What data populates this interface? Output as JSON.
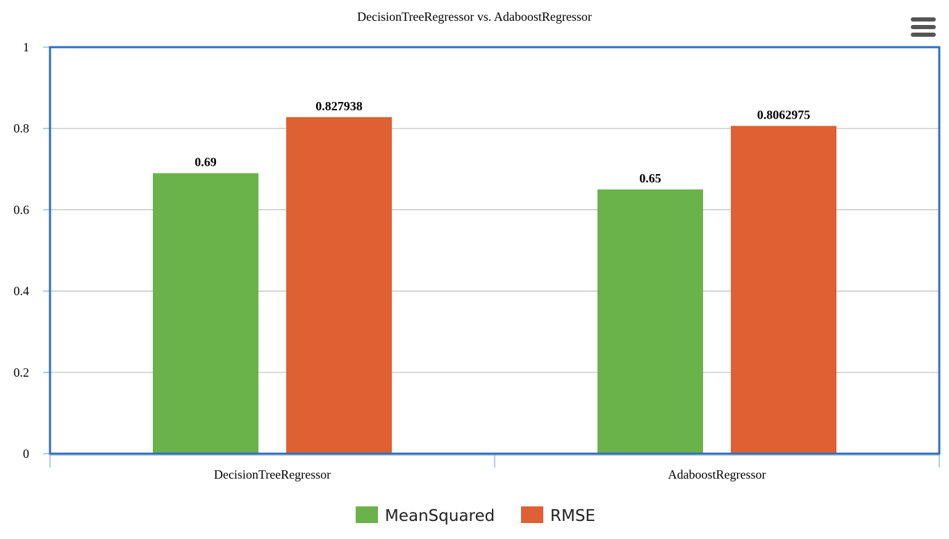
{
  "chart_data": {
    "type": "bar",
    "title": "DecisionTreeRegressor vs. AdaboostRegressor",
    "xlabel": "",
    "ylabel": "",
    "categories": [
      "DecisionTreeRegressor",
      "AdaboostRegressor"
    ],
    "series": [
      {
        "name": "MeanSquared",
        "values": [
          0.69,
          0.65
        ],
        "labels": [
          "0.69",
          "0.65"
        ],
        "color": "#6ab24a"
      },
      {
        "name": "RMSE",
        "values": [
          0.827938,
          0.8062975
        ],
        "labels": [
          "0.827938",
          "0.8062975"
        ],
        "color": "#de6033"
      }
    ],
    "ylim": [
      0,
      1
    ],
    "yticks": [
      "0",
      "0.2",
      "0.4",
      "0.6",
      "0.8",
      "1"
    ],
    "grid": true,
    "legend": "bottom-center",
    "plot_border_color": "#2e6fc0"
  },
  "menu_icon": "hamburger-menu-icon"
}
